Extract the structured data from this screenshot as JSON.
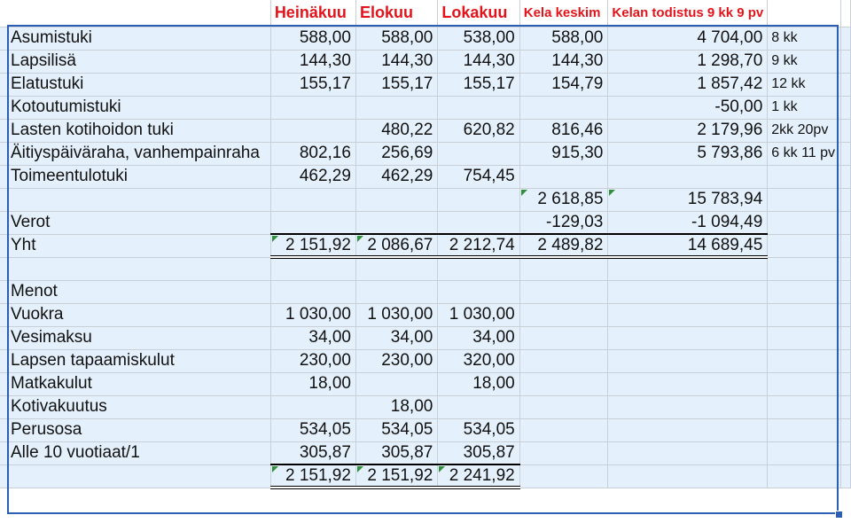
{
  "headers": {
    "col_b": "Heinäkuu",
    "col_c": "Elokuu",
    "col_d": "Lokakuu",
    "col_e": "Kela keskim",
    "col_f": "Kelan todistus 9 kk 9 pv"
  },
  "income_rows": [
    {
      "label": "Asumistuki",
      "b": "588,00",
      "c": "588,00",
      "d": "538,00",
      "e": "588,00",
      "f": "4 704,00",
      "note": "8 kk"
    },
    {
      "label": "Lapsilisä",
      "b": "144,30",
      "c": "144,30",
      "d": "144,30",
      "e": "144,30",
      "f": "1 298,70",
      "note": "9 kk"
    },
    {
      "label": "Elatustuki",
      "b": "155,17",
      "c": "155,17",
      "d": "155,17",
      "e": "154,79",
      "f": "1 857,42",
      "note": "12 kk"
    },
    {
      "label": "Kotoutumistuki",
      "b": "",
      "c": "",
      "d": "",
      "e": "",
      "f": "-50,00",
      "note": "1 kk"
    },
    {
      "label": "Lasten kotihoidon tuki",
      "b": "",
      "c": "480,22",
      "d": "620,82",
      "e": "816,46",
      "f": "2 179,96",
      "note": "2kk 20pv"
    },
    {
      "label": "Äitiyspäiväraha, vanhempainraha",
      "b": "802,16",
      "c": "256,69",
      "d": "",
      "e": "915,30",
      "f": "5 793,86",
      "note": "6 kk 11 pv"
    },
    {
      "label": "Toimeentulotuki",
      "b": "462,29",
      "c": "462,29",
      "d": "754,45",
      "e": "",
      "f": "",
      "note": ""
    }
  ],
  "subtotal": {
    "e": "2 618,85",
    "f": "15 783,94"
  },
  "taxes": {
    "label": "Verot",
    "e": "-129,03",
    "f": "-1 094,49"
  },
  "total": {
    "label": "Yht",
    "b": "2 151,92",
    "c": "2 086,67",
    "d": "2 212,74",
    "e": "2 489,82",
    "f": "14 689,45"
  },
  "expenses_heading": "Menot",
  "expense_rows": [
    {
      "label": "Vuokra",
      "b": "1 030,00",
      "c": "1 030,00",
      "d": "1 030,00"
    },
    {
      "label": "Vesimaksu",
      "b": "34,00",
      "c": "34,00",
      "d": "34,00"
    },
    {
      "label": "Lapsen tapaamiskulut",
      "b": "230,00",
      "c": "230,00",
      "d": "320,00"
    },
    {
      "label": "Matkakulut",
      "b": "18,00",
      "c": "",
      "d": "18,00"
    },
    {
      "label": "Kotivakuutus",
      "b": "",
      "c": "18,00",
      "d": ""
    },
    {
      "label": "Perusosa",
      "b": "534,05",
      "c": "534,05",
      "d": "534,05"
    },
    {
      "label": "Alle 10 vuotiaat/1",
      "b": "305,87",
      "c": "305,87",
      "d": "305,87"
    }
  ],
  "expense_total": {
    "b": "2 151,92",
    "c": "2 151,92",
    "d": "2 241,92"
  },
  "colors": {
    "header_text": "#e3131b",
    "cell_fill": "#e4f0fb",
    "selection": "#2b5eb5",
    "error_marker": "#2f8f3a"
  }
}
